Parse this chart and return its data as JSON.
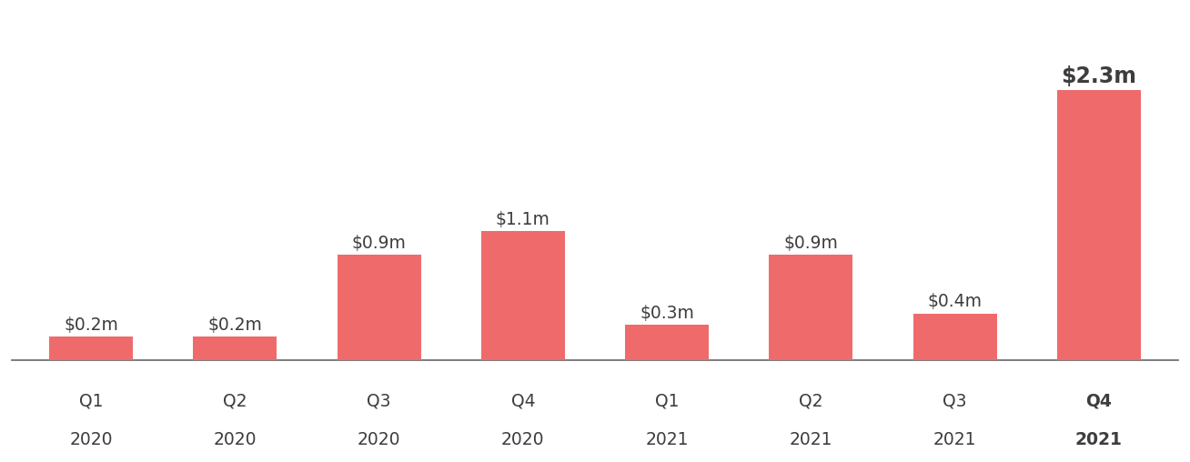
{
  "quarter_labels": [
    "Q1",
    "Q2",
    "Q3",
    "Q4",
    "Q1",
    "Q2",
    "Q3",
    "Q4"
  ],
  "year_labels": [
    "2020",
    "2020",
    "2020",
    "2020",
    "2021",
    "2021",
    "2021",
    "2021"
  ],
  "values": [
    0.2,
    0.2,
    0.9,
    1.1,
    0.3,
    0.9,
    0.4,
    2.3
  ],
  "bar_labels": [
    "$0.2m",
    "$0.2m",
    "$0.9m",
    "$1.1m",
    "$0.3m",
    "$0.9m",
    "$0.4m",
    "$2.3m"
  ],
  "bar_color": "#EF6B6B",
  "background_color": "#ffffff",
  "text_color": "#3d3d3d",
  "label_fontsize": 13.5,
  "tick_fontsize": 13.5,
  "last_bar_fontsize": 17,
  "bar_width": 0.58,
  "ylim": [
    0,
    2.75
  ],
  "xlim_left": -0.55,
  "xlim_right": 7.55
}
